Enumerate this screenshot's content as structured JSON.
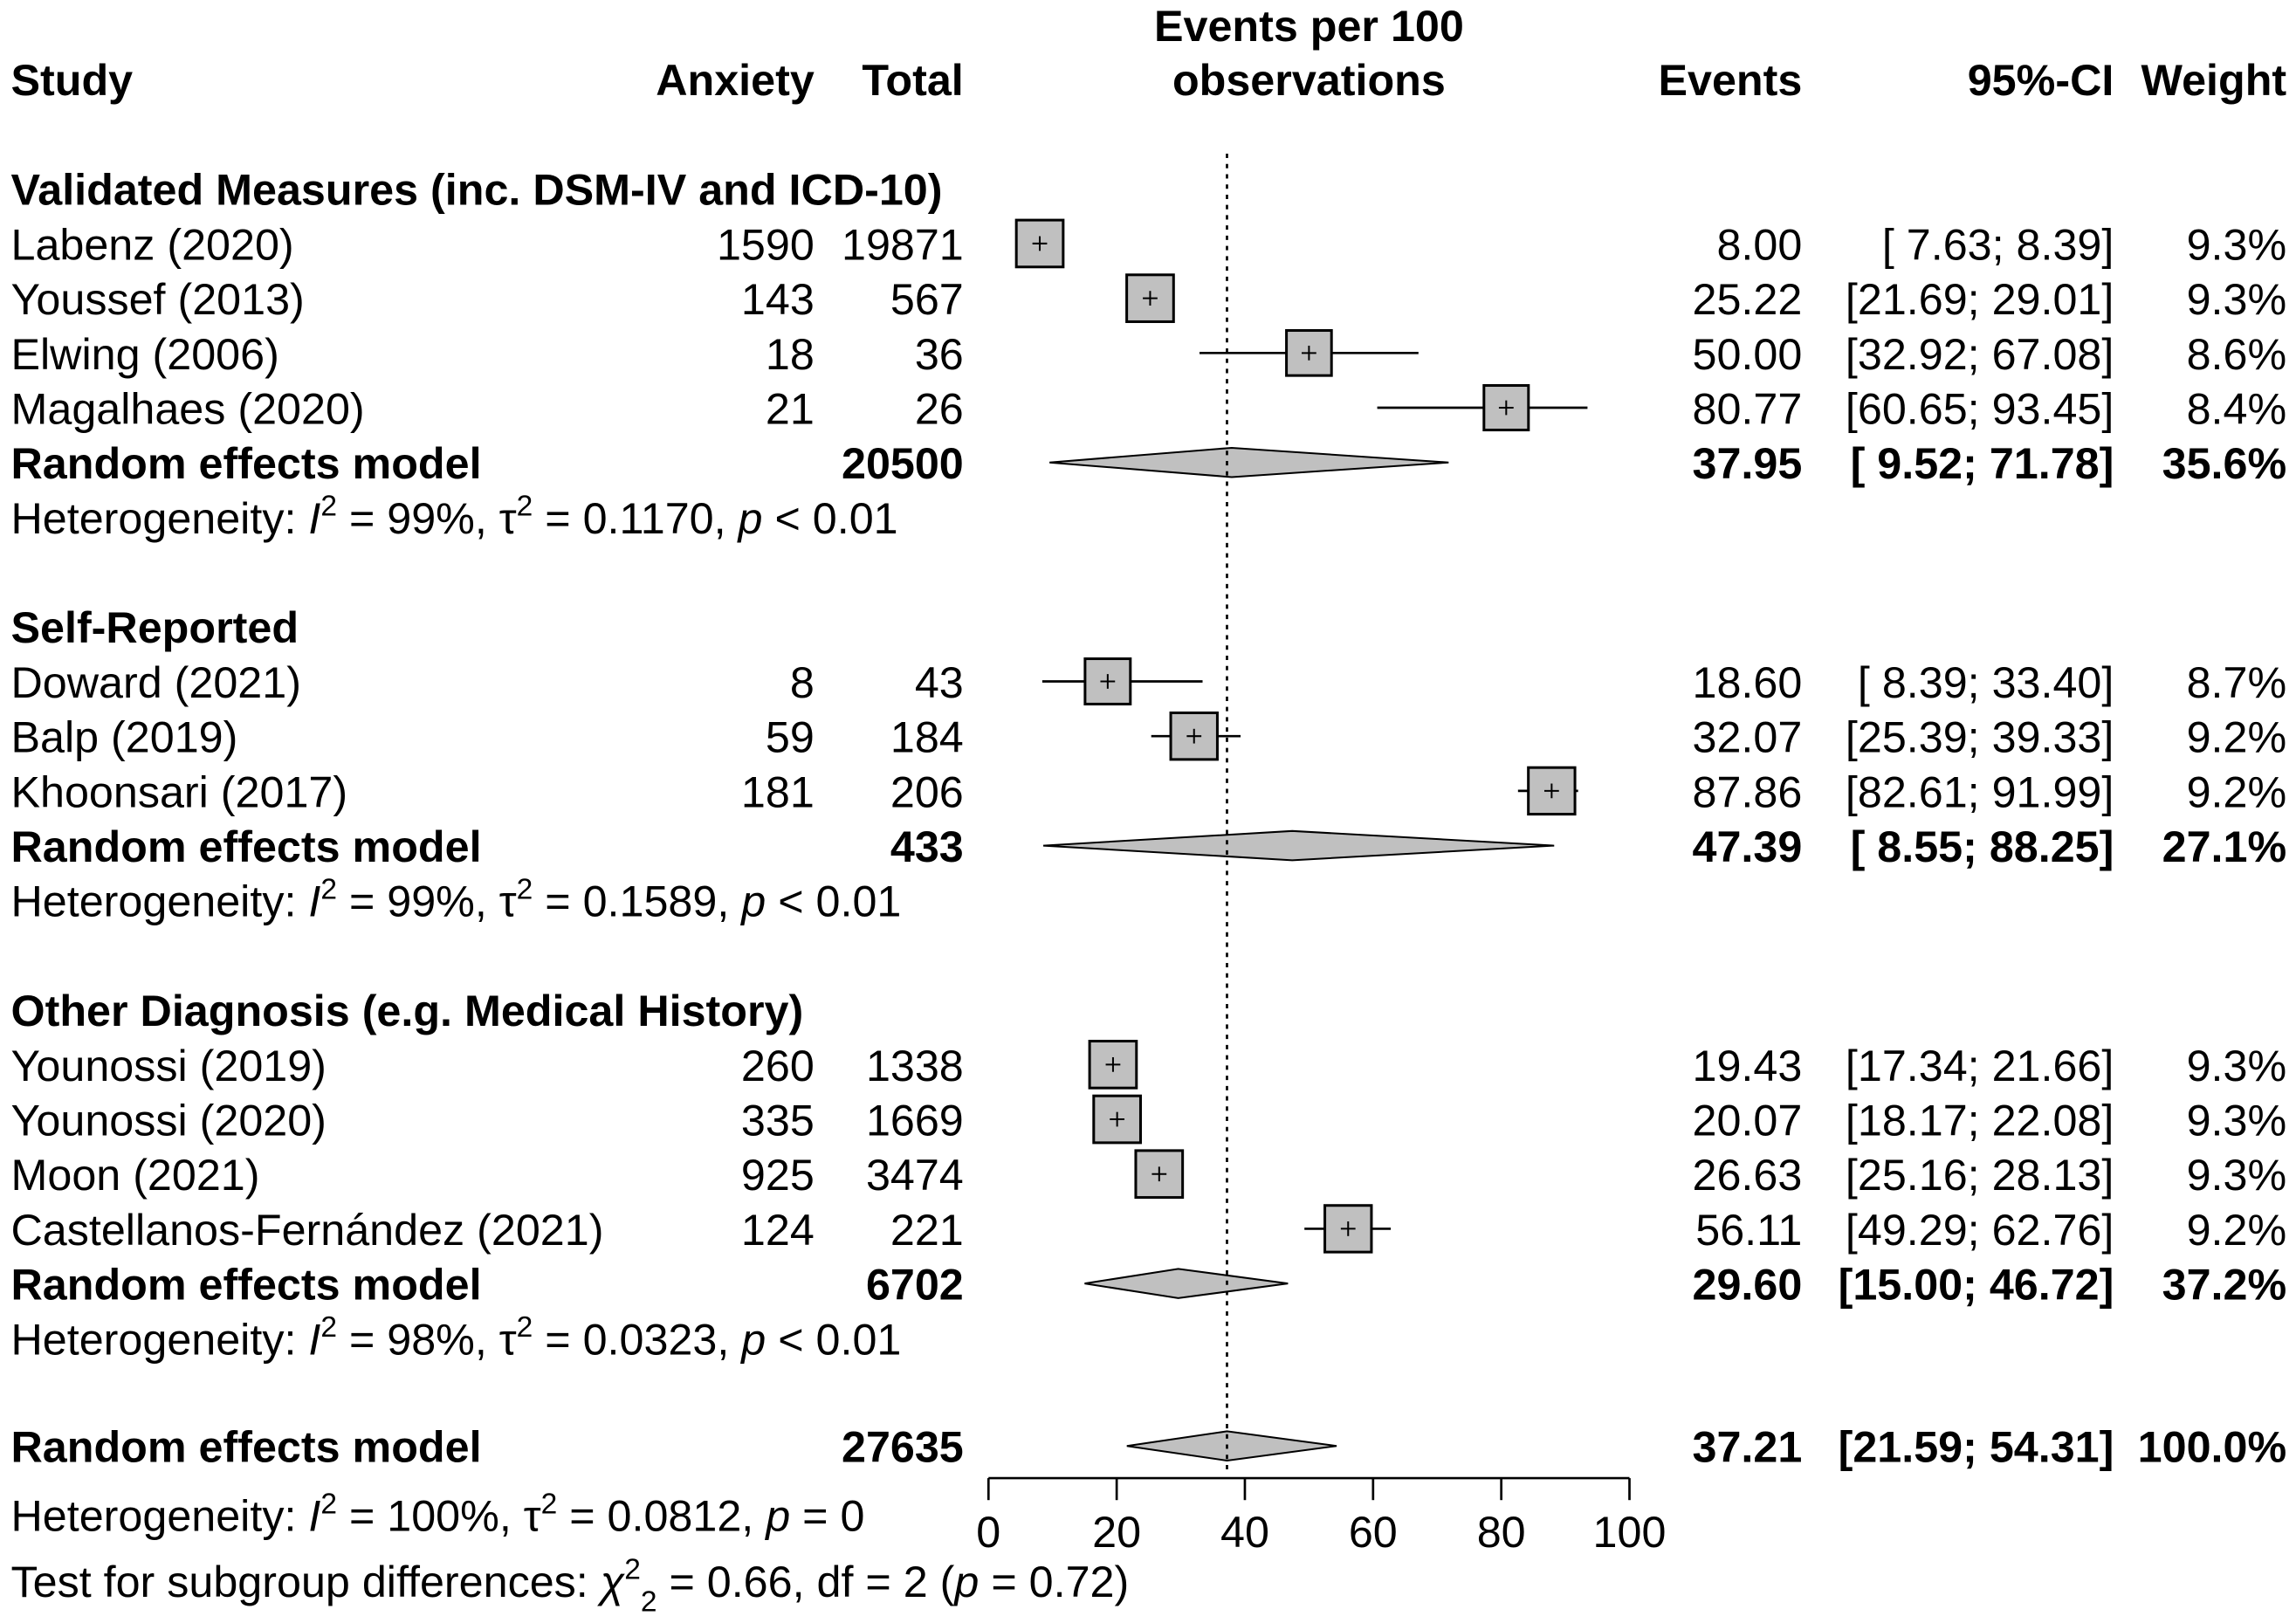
{
  "chart_data": {
    "type": "forest",
    "title_lines": [
      "Events per 100",
      "observations"
    ],
    "headers": {
      "study": "Study",
      "anxiety": "Anxiety",
      "total": "Total",
      "events": "Events",
      "ci": "95%-CI",
      "weight": "Weight"
    },
    "axis": {
      "min": 0,
      "max": 100,
      "ticks": [
        0,
        20,
        40,
        60,
        80,
        100
      ],
      "reference_line": 37.21
    },
    "overall_est": 37.21,
    "groups": [
      {
        "title": "Validated Measures (inc. DSM-IV and ICD-10)",
        "studies": [
          {
            "name": "Labenz (2020)",
            "anxiety": "1590",
            "total": "19871",
            "events": "8.00",
            "ci": "[ 7.63;  8.39]",
            "weight": "9.3%",
            "est": 8.0,
            "lo": 7.63,
            "hi": 8.39,
            "w": 9.3
          },
          {
            "name": "Youssef (2013)",
            "anxiety": "143",
            "total": "567",
            "events": "25.22",
            "ci": "[21.69; 29.01]",
            "weight": "9.3%",
            "est": 25.22,
            "lo": 21.69,
            "hi": 29.01,
            "w": 9.3
          },
          {
            "name": "Elwing (2006)",
            "anxiety": "18",
            "total": "36",
            "events": "50.00",
            "ci": "[32.92; 67.08]",
            "weight": "8.6%",
            "est": 50.0,
            "lo": 32.92,
            "hi": 67.08,
            "w": 8.6
          },
          {
            "name": "Magalhaes (2020)",
            "anxiety": "21",
            "total": "26",
            "events": "80.77",
            "ci": "[60.65; 93.45]",
            "weight": "8.4%",
            "est": 80.77,
            "lo": 60.65,
            "hi": 93.45,
            "w": 8.4
          }
        ],
        "model": {
          "label": "Random effects model",
          "total": "20500",
          "events": "37.95",
          "ci": "[ 9.52; 71.78]",
          "weight": "35.6%",
          "est": 37.95,
          "lo": 9.52,
          "hi": 71.78
        },
        "heterogeneity": {
          "prefix": "Heterogeneity: ",
          "I2": "99%",
          "tau2": "0.1170",
          "p": "< 0.01"
        }
      },
      {
        "title": "Self-Reported",
        "studies": [
          {
            "name": "Doward (2021)",
            "anxiety": "8",
            "total": "43",
            "events": "18.60",
            "ci": "[ 8.39; 33.40]",
            "weight": "8.7%",
            "est": 18.6,
            "lo": 8.39,
            "hi": 33.4,
            "w": 8.7
          },
          {
            "name": "Balp (2019)",
            "anxiety": "59",
            "total": "184",
            "events": "32.07",
            "ci": "[25.39; 39.33]",
            "weight": "9.2%",
            "est": 32.07,
            "lo": 25.39,
            "hi": 39.33,
            "w": 9.2
          },
          {
            "name": "Khoonsari (2017)",
            "anxiety": "181",
            "total": "206",
            "events": "87.86",
            "ci": "[82.61; 91.99]",
            "weight": "9.2%",
            "est": 87.86,
            "lo": 82.61,
            "hi": 91.99,
            "w": 9.2
          }
        ],
        "model": {
          "label": "Random effects model",
          "total": "433",
          "events": "47.39",
          "ci": "[ 8.55; 88.25]",
          "weight": "27.1%",
          "est": 47.39,
          "lo": 8.55,
          "hi": 88.25
        },
        "heterogeneity": {
          "prefix": "Heterogeneity: ",
          "I2": "99%",
          "tau2": "0.1589",
          "p": "< 0.01"
        }
      },
      {
        "title": "Other Diagnosis (e.g. Medical History)",
        "studies": [
          {
            "name": "Younossi (2019)",
            "anxiety": "260",
            "total": "1338",
            "events": "19.43",
            "ci": "[17.34; 21.66]",
            "weight": "9.3%",
            "est": 19.43,
            "lo": 17.34,
            "hi": 21.66,
            "w": 9.3
          },
          {
            "name": "Younossi (2020)",
            "anxiety": "335",
            "total": "1669",
            "events": "20.07",
            "ci": "[18.17; 22.08]",
            "weight": "9.3%",
            "est": 20.07,
            "lo": 18.17,
            "hi": 22.08,
            "w": 9.3
          },
          {
            "name": "Moon (2021)",
            "anxiety": "925",
            "total": "3474",
            "events": "26.63",
            "ci": "[25.16; 28.13]",
            "weight": "9.3%",
            "est": 26.63,
            "lo": 25.16,
            "hi": 28.13,
            "w": 9.3
          },
          {
            "name": "Castellanos-Fernández (2021)",
            "anxiety": "124",
            "total": "221",
            "events": "56.11",
            "ci": "[49.29; 62.76]",
            "weight": "9.2%",
            "est": 56.11,
            "lo": 49.29,
            "hi": 62.76,
            "w": 9.2
          }
        ],
        "model": {
          "label": "Random effects model",
          "total": "6702",
          "events": "29.60",
          "ci": "[15.00; 46.72]",
          "weight": "37.2%",
          "est": 29.6,
          "lo": 15.0,
          "hi": 46.72
        },
        "heterogeneity": {
          "prefix": "Heterogeneity: ",
          "I2": "98%",
          "tau2": "0.0323",
          "p": "< 0.01"
        }
      }
    ],
    "overall": {
      "label": "Random effects model",
      "total": "27635",
      "events": "37.21",
      "ci": "[21.59; 54.31]",
      "weight": "100.0%",
      "est": 37.21,
      "lo": 21.59,
      "hi": 54.31
    },
    "overall_heterogeneity": {
      "prefix": "Heterogeneity: ",
      "I2": "100%",
      "tau2": "0.0812",
      "p": "= 0"
    },
    "subgroup_test": {
      "prefix": "Test for subgroup differences: ",
      "chi2": "0.66",
      "df_text": ", df = 2 (",
      "p": "= 0.72",
      "suffix": ")"
    }
  }
}
